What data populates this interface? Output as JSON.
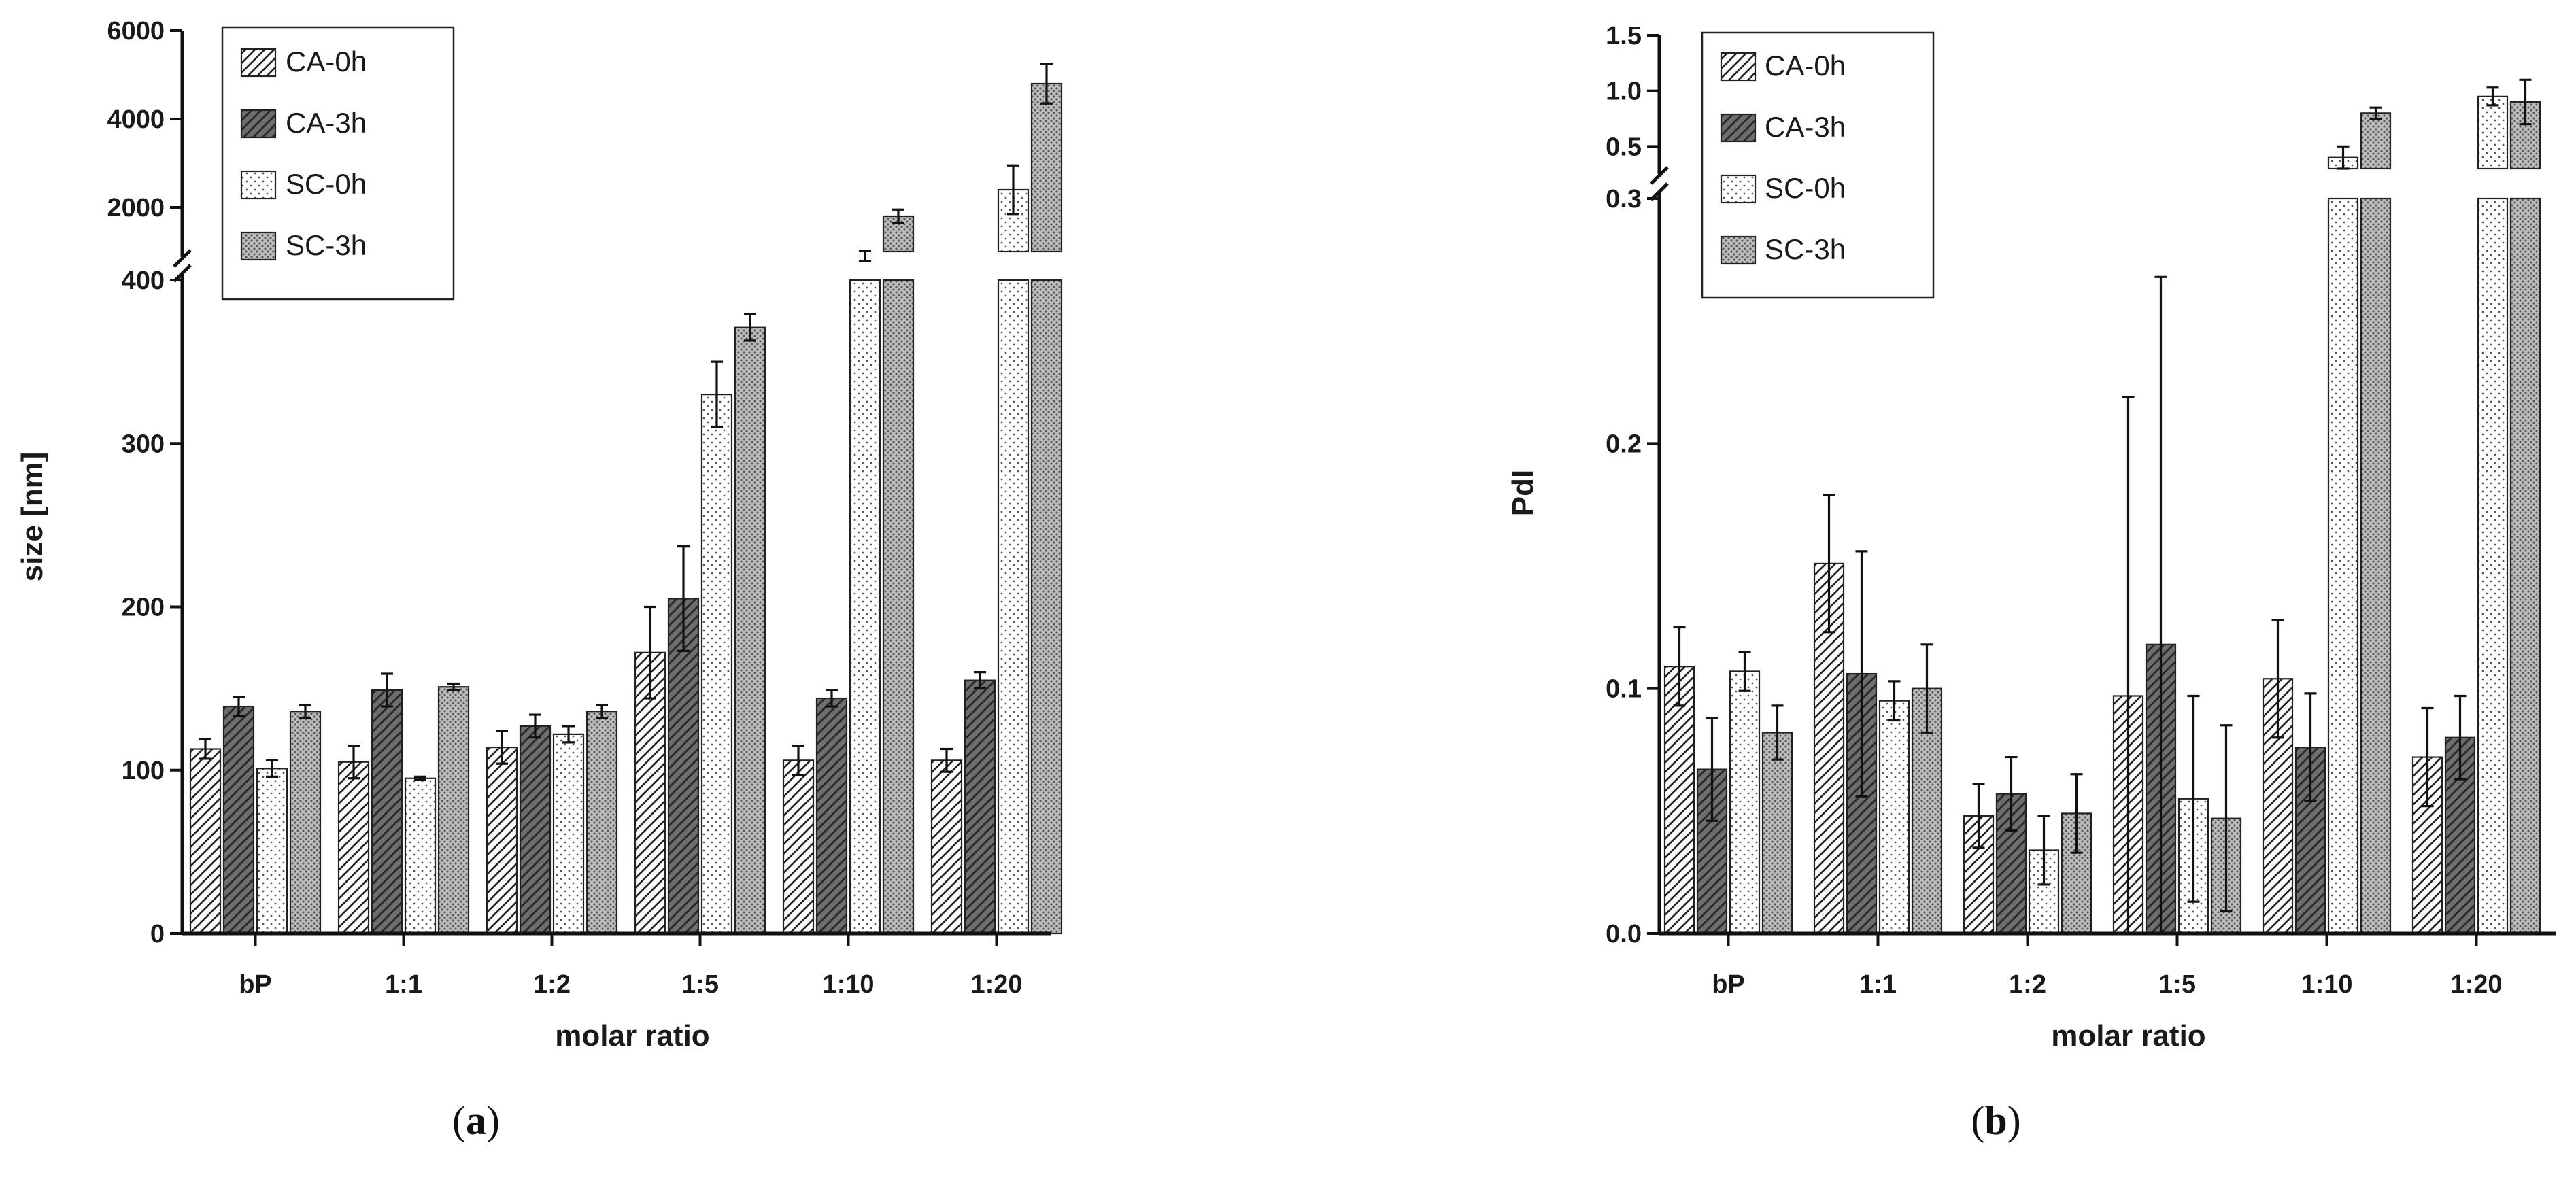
{
  "chart_data": [
    {
      "type": "bar",
      "panel_label": "a",
      "xlabel": "molar ratio",
      "ylabel": "size [nm]",
      "categories": [
        "bP",
        "1:1",
        "1:2",
        "1:5",
        "1:10",
        "1:20"
      ],
      "axis_break": {
        "lower_range": [
          0,
          400
        ],
        "upper_range": [
          1000,
          6000
        ]
      },
      "yticks_lower": [
        "0",
        "100",
        "200",
        "300",
        "400"
      ],
      "yticks_upper": [
        "2000",
        "4000",
        "6000"
      ],
      "legend": [
        "CA-0h",
        "CA-3h",
        "SC-0h",
        "SC-3h"
      ],
      "series": [
        {
          "name": "CA-0h",
          "pattern": "diagonal",
          "values": [
            113,
            105,
            114,
            172,
            106,
            106
          ],
          "errors": [
            6,
            10,
            10,
            28,
            9,
            7
          ]
        },
        {
          "name": "CA-3h",
          "pattern": "dark-diagonal",
          "values": [
            139,
            149,
            127,
            205,
            144,
            155
          ],
          "errors": [
            6,
            10,
            7,
            32,
            5,
            5
          ]
        },
        {
          "name": "SC-0h",
          "pattern": "dots",
          "values": [
            101,
            95,
            122,
            330,
            900,
            2400
          ],
          "errors": [
            5,
            1,
            5,
            20,
            120,
            550
          ]
        },
        {
          "name": "SC-3h",
          "pattern": "dense-dots",
          "values": [
            136,
            151,
            136,
            371,
            1800,
            4800
          ],
          "errors": [
            4,
            2,
            4,
            8,
            150,
            450
          ]
        }
      ]
    },
    {
      "type": "bar",
      "panel_label": "b",
      "xlabel": "molar ratio",
      "ylabel": "PdI",
      "categories": [
        "bP",
        "1:1",
        "1:2",
        "1:5",
        "1:10",
        "1:20"
      ],
      "axis_break": {
        "lower_range": [
          0,
          0.3
        ],
        "upper_range": [
          0.3,
          1.5
        ]
      },
      "yticks_lower": [
        "0.0",
        "0.1",
        "0.2",
        "0.3"
      ],
      "yticks_upper": [
        "0.5",
        "1.0",
        "1.5"
      ],
      "legend": [
        "CA-0h",
        "CA-3h",
        "SC-0h",
        "SC-3h"
      ],
      "series": [
        {
          "name": "CA-0h",
          "pattern": "diagonal",
          "values": [
            0.109,
            0.151,
            0.048,
            0.097,
            0.104,
            0.072
          ],
          "errors": [
            0.016,
            0.028,
            0.013,
            0.122,
            0.024,
            0.02
          ]
        },
        {
          "name": "CA-3h",
          "pattern": "dark-diagonal",
          "values": [
            0.067,
            0.106,
            0.057,
            0.118,
            0.076,
            0.08
          ],
          "errors": [
            0.021,
            0.05,
            0.015,
            0.15,
            0.022,
            0.017
          ]
        },
        {
          "name": "SC-0h",
          "pattern": "dots",
          "values": [
            0.107,
            0.095,
            0.034,
            0.055,
            0.4,
            0.95
          ],
          "errors": [
            0.008,
            0.008,
            0.014,
            0.042,
            0.1,
            0.08
          ]
        },
        {
          "name": "SC-3h",
          "pattern": "dense-dots",
          "values": [
            0.082,
            0.1,
            0.049,
            0.047,
            0.8,
            0.9
          ],
          "errors": [
            0.011,
            0.018,
            0.016,
            0.038,
            0.05,
            0.2
          ]
        }
      ]
    }
  ]
}
